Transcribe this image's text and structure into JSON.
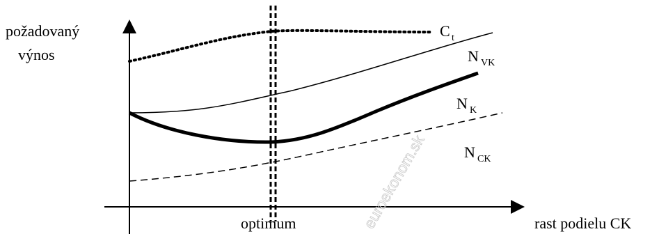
{
  "axes": {
    "y_label_line1": "požadovaný",
    "y_label_line2": "výnos",
    "x_label": "rast podielu CK",
    "optimum_label": "optimum"
  },
  "curves": {
    "ct": {
      "main": "C",
      "sub": "t"
    },
    "nvk": {
      "main": "N",
      "sub": "VK"
    },
    "nk": {
      "main": "N",
      "sub": "K"
    },
    "nck": {
      "main": "N",
      "sub": "CK"
    }
  },
  "watermark": "euroekonom.sk"
}
